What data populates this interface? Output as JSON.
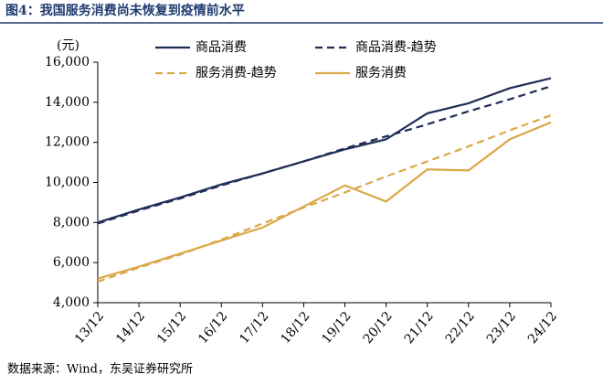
{
  "header": {
    "title": "图4：我国服务消费尚未恢复到疫情前水平"
  },
  "chart_data": {
    "type": "line",
    "y_unit": "(元)",
    "categories": [
      "13/12",
      "14/12",
      "15/12",
      "16/12",
      "17/12",
      "18/12",
      "19/12",
      "20/12",
      "21/12",
      "22/12",
      "23/12",
      "24/12"
    ],
    "series": [
      {
        "name": "商品消费",
        "color": "#1f2d56",
        "dashed": false,
        "values": [
          8000,
          8650,
          9250,
          9900,
          10450,
          11050,
          11650,
          12150,
          13450,
          13950,
          14700,
          15200
        ]
      },
      {
        "name": "商品消费-趋势",
        "color": "#1f2d56",
        "dashed": true,
        "values": [
          7950,
          8600,
          9200,
          9850,
          10450,
          11050,
          11700,
          12300,
          12900,
          13550,
          14150,
          14800
        ]
      },
      {
        "name": "服务消费-趋势",
        "color": "#dba848",
        "dashed": true,
        "values": [
          5050,
          5750,
          6400,
          7150,
          7950,
          8750,
          9500,
          10300,
          11050,
          11800,
          12600,
          13350
        ]
      },
      {
        "name": "服务消费",
        "color": "#dba848",
        "dashed": false,
        "values": [
          5200,
          5800,
          6450,
          7100,
          7750,
          8800,
          9850,
          9050,
          10650,
          10600,
          12150,
          13000
        ]
      }
    ],
    "ylim": [
      4000,
      16000
    ],
    "yticks": [
      {
        "value": 4000,
        "label": "4,000"
      },
      {
        "value": 6000,
        "label": "6,000"
      },
      {
        "value": 8000,
        "label": "8,000"
      },
      {
        "value": 10000,
        "label": "10,000"
      },
      {
        "value": 12000,
        "label": "12,000"
      },
      {
        "value": 14000,
        "label": "14,000"
      },
      {
        "value": 16000,
        "label": "16,000"
      }
    ],
    "grid": false
  },
  "footer": {
    "source": "数据来源：Wind，东吴证券研究所"
  }
}
